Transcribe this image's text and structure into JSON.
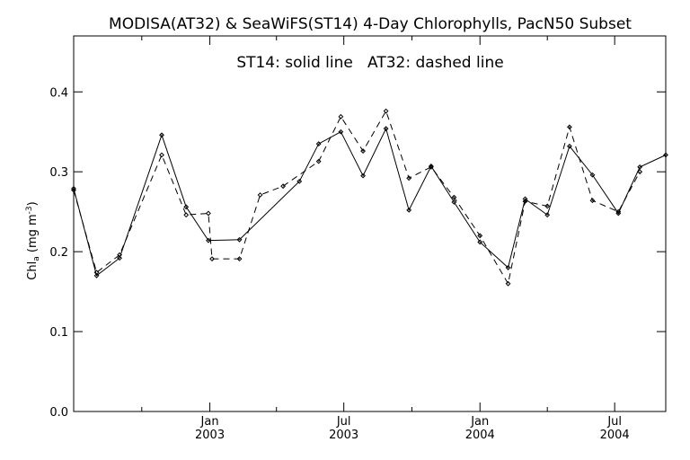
{
  "chart_data": {
    "type": "line",
    "title": "MODISA(AT32) & SeaWiFS(ST14) 4-Day Chlorophylls, PacN50 Subset",
    "annotation": "ST14: solid line   AT32: dashed line",
    "xlabel": "",
    "ylabel": "Chl",
    "ylabel_subscript": "a",
    "ylabel_units": "(mg m",
    "ylabel_units_sup": "-3",
    "ylabel_units_close": ")",
    "ylim": [
      0.0,
      0.47
    ],
    "xlim": [
      "2002-07-01",
      "2004-09-08"
    ],
    "grid": false,
    "legend": "",
    "yticks": [
      {
        "value": 0.0,
        "label": "0.0"
      },
      {
        "value": 0.1,
        "label": "0.1"
      },
      {
        "value": 0.2,
        "label": "0.2"
      },
      {
        "value": 0.3,
        "label": "0.3"
      },
      {
        "value": 0.4,
        "label": "0.4"
      }
    ],
    "xticks_major": [
      {
        "date": "2003-01-01",
        "month": "Jan",
        "year": "2003"
      },
      {
        "date": "2003-07-01",
        "month": "Jul",
        "year": "2003"
      },
      {
        "date": "2004-01-01",
        "month": "Jan",
        "year": "2004"
      },
      {
        "date": "2004-07-01",
        "month": "Jul",
        "year": "2004"
      }
    ],
    "xticks_minor": [
      "2002-10-01",
      "2003-04-01",
      "2003-10-01",
      "2004-04-01"
    ],
    "series": [
      {
        "name": "ST14",
        "style": "solid",
        "color": "#000000",
        "points": [
          {
            "x": "2002-07-01",
            "y": 0.279
          },
          {
            "x": "2002-08-01",
            "y": 0.17
          },
          {
            "x": "2002-09-01",
            "y": 0.192
          },
          {
            "x": "2002-10-28",
            "y": 0.346
          },
          {
            "x": "2002-11-30",
            "y": 0.256
          },
          {
            "x": "2002-12-30",
            "y": 0.214
          },
          {
            "x": "2003-02-10",
            "y": 0.215
          },
          {
            "x": "2003-05-02",
            "y": 0.288
          },
          {
            "x": "2003-05-28",
            "y": 0.335
          },
          {
            "x": "2003-06-27",
            "y": 0.35
          },
          {
            "x": "2003-07-27",
            "y": 0.295
          },
          {
            "x": "2003-08-27",
            "y": 0.354
          },
          {
            "x": "2003-09-27",
            "y": 0.252
          },
          {
            "x": "2003-10-27",
            "y": 0.307
          },
          {
            "x": "2003-11-27",
            "y": 0.262
          },
          {
            "x": "2004-01-01",
            "y": 0.212
          },
          {
            "x": "2004-02-08",
            "y": 0.18
          },
          {
            "x": "2004-03-02",
            "y": 0.266
          },
          {
            "x": "2004-04-01",
            "y": 0.246
          },
          {
            "x": "2004-05-01",
            "y": 0.332
          },
          {
            "x": "2004-06-01",
            "y": 0.296
          },
          {
            "x": "2004-07-06",
            "y": 0.248
          },
          {
            "x": "2004-08-04",
            "y": 0.306
          },
          {
            "x": "2004-09-08",
            "y": 0.321
          }
        ]
      },
      {
        "name": "AT32",
        "style": "dashed",
        "color": "#000000",
        "points": [
          {
            "x": "2002-07-01",
            "y": 0.277
          },
          {
            "x": "2002-08-01",
            "y": 0.174
          },
          {
            "x": "2002-09-01",
            "y": 0.196
          },
          {
            "x": "2002-10-28",
            "y": 0.321
          },
          {
            "x": "2002-11-30",
            "y": 0.246
          },
          {
            "x": "2002-12-30",
            "y": 0.248
          },
          {
            "x": "2003-01-04",
            "y": 0.191
          },
          {
            "x": "2003-02-10",
            "y": 0.191
          },
          {
            "x": "2003-03-10",
            "y": 0.271
          },
          {
            "x": "2003-04-10",
            "y": 0.282
          },
          {
            "x": "2003-05-28",
            "y": 0.313
          },
          {
            "x": "2003-06-27",
            "y": 0.369
          },
          {
            "x": "2003-07-27",
            "y": 0.326
          },
          {
            "x": "2003-08-27",
            "y": 0.376
          },
          {
            "x": "2003-09-27",
            "y": 0.292
          },
          {
            "x": "2003-10-27",
            "y": 0.306
          },
          {
            "x": "2003-11-27",
            "y": 0.268
          },
          {
            "x": "2004-01-01",
            "y": 0.22
          },
          {
            "x": "2004-02-08",
            "y": 0.16
          },
          {
            "x": "2004-03-02",
            "y": 0.263
          },
          {
            "x": "2004-04-01",
            "y": 0.257
          },
          {
            "x": "2004-05-01",
            "y": 0.356
          },
          {
            "x": "2004-06-01",
            "y": 0.264
          },
          {
            "x": "2004-07-06",
            "y": 0.25
          },
          {
            "x": "2004-08-04",
            "y": 0.3
          }
        ]
      }
    ]
  }
}
